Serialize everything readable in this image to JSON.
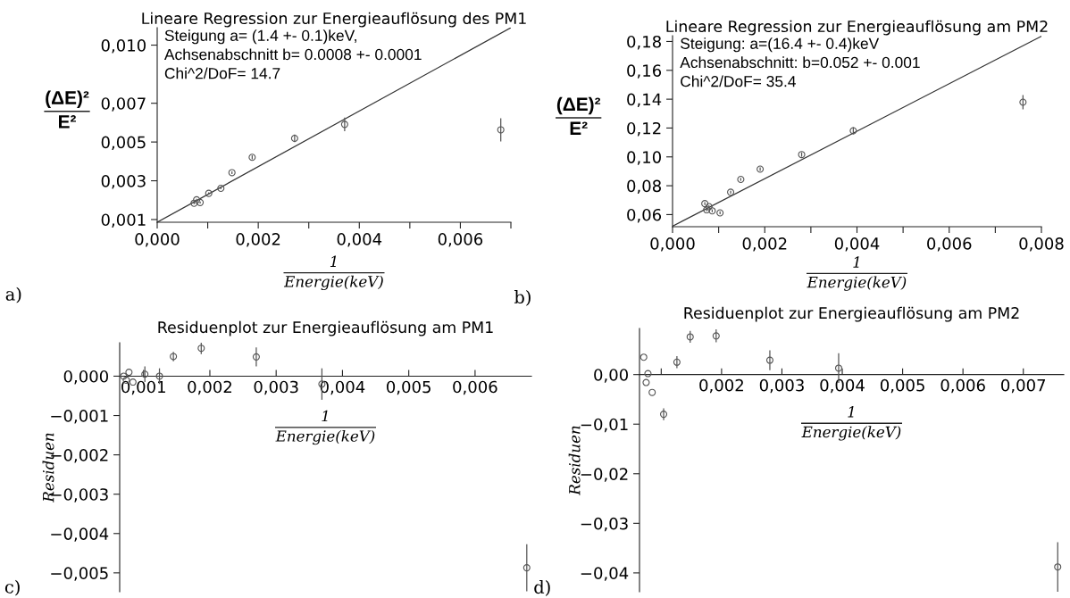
{
  "chart_data": [
    {
      "type": "scatter",
      "title": "Lineare Regression zur Energieauflösung des PM1",
      "xlabel": "1\nEnergie(keV)",
      "ylabel": "(ΔE)²\nE²",
      "xlim": [
        0,
        0.007
      ],
      "ylim": [
        0.00086,
        0.0109
      ],
      "xticks": [
        {
          "value": 0,
          "label": "0,000"
        },
        {
          "value": 0.001,
          "label": null
        },
        {
          "value": 0.002,
          "label": "0,002"
        },
        {
          "value": 0.003,
          "label": null
        },
        {
          "value": 0.004,
          "label": "0,004"
        },
        {
          "value": 0.005,
          "label": null
        },
        {
          "value": 0.006,
          "label": "0,006"
        },
        {
          "value": 0.007,
          "label": null
        }
      ],
      "yticks": [
        {
          "value": 0.001,
          "label": "0,001"
        },
        {
          "value": 0.003,
          "label": "0,003"
        },
        {
          "value": 0.005,
          "label": "0,005"
        },
        {
          "value": 0.007,
          "label": "0,007"
        },
        {
          "value": 0.01,
          "label": "0,010"
        }
      ],
      "grid": false,
      "marker": "circle",
      "series": [
        {
          "color": "#555555",
          "x": [
            0.00073,
            0.00078,
            0.00085,
            0.00102,
            0.00126,
            0.00148,
            0.00188,
            0.00272,
            0.00371,
            0.0068
          ],
          "values": [
            0.00184,
            0.00202,
            0.00188,
            0.00235,
            0.00261,
            0.00342,
            0.00421,
            0.00519,
            0.00591,
            0.00563
          ],
          "errors": [
            5e-05,
            5e-05,
            5e-05,
            5e-05,
            5e-05,
            7e-05,
            0.0001,
            0.0002,
            0.00035,
            0.0006
          ]
        },
        {
          "type": "line",
          "marker": "none",
          "color": "#333333",
          "x": [
            0,
            0.007
          ],
          "values": [
            0.00086,
            0.0109
          ]
        }
      ],
      "annotations": [
        "a)",
        "Steigung a= (1.4 +- 0.1)keV,\nAchsenabschnitt b= 0.0008 +- 0.0001\nChi^2/DoF= 14.7"
      ]
    },
    {
      "type": "scatter",
      "title": "Lineare Regression zur Energieauflösung am PM2",
      "xlabel": "1\nEnergie(keV)",
      "ylabel": "(ΔE)²\nE²",
      "xlim": [
        0,
        0.008
      ],
      "ylim": [
        0.0516,
        0.184
      ],
      "xticks": [
        {
          "value": 0,
          "label": "0,000"
        },
        {
          "value": 0.001,
          "label": null
        },
        {
          "value": 0.002,
          "label": "0,002"
        },
        {
          "value": 0.003,
          "label": null
        },
        {
          "value": 0.004,
          "label": "0,004"
        },
        {
          "value": 0.005,
          "label": null
        },
        {
          "value": 0.006,
          "label": "0,006"
        },
        {
          "value": 0.007,
          "label": null
        },
        {
          "value": 0.008,
          "label": "0,008"
        }
      ],
      "yticks": [
        {
          "value": 0.06,
          "label": "0,06"
        },
        {
          "value": 0.08,
          "label": "0,08"
        },
        {
          "value": 0.1,
          "label": "0,10"
        },
        {
          "value": 0.12,
          "label": "0,12"
        },
        {
          "value": 0.14,
          "label": "0,14"
        },
        {
          "value": 0.16,
          "label": "0,16"
        },
        {
          "value": 0.18,
          "label": "0,18"
        }
      ],
      "grid": false,
      "marker": "circle",
      "series": [
        {
          "color": "#555555",
          "x": [
            0.0007,
            0.00074,
            0.00079,
            0.00086,
            0.00103,
            0.00126,
            0.00148,
            0.0019,
            0.0028,
            0.00392,
            0.0076
          ],
          "values": [
            0.0676,
            0.0633,
            0.0655,
            0.0626,
            0.0612,
            0.0755,
            0.0844,
            0.0915,
            0.1016,
            0.1181,
            0.1379
          ],
          "errors": [
            0.001,
            0.001,
            0.001,
            0.001,
            0.001,
            0.001,
            0.001,
            0.0012,
            0.0015,
            0.0025,
            0.005
          ]
        },
        {
          "type": "line",
          "marker": "none",
          "color": "#333333",
          "x": [
            0,
            0.008
          ],
          "values": [
            0.052,
            0.1836
          ]
        }
      ],
      "annotations": [
        "b)",
        "Steigung: a=(16.4 +- 0.4)keV\nAchsenabschnitt: b=0.052 +- 0.001\nChi^2/DoF= 35.4"
      ]
    },
    {
      "type": "scatter",
      "title": "Residuenplot zur Energieauflösung am PM1",
      "xlabel": "1\nEnergie(keV)",
      "ylabel": "Residuen",
      "xlim": [
        0.00064,
        0.00685
      ],
      "ylim": [
        -0.00548,
        0.00085
      ],
      "xticks": [
        {
          "value": 0.001,
          "label": "0,001"
        },
        {
          "value": 0.002,
          "label": "0,002"
        },
        {
          "value": 0.003,
          "label": "0,003"
        },
        {
          "value": 0.004,
          "label": "0,004"
        },
        {
          "value": 0.005,
          "label": "0,005"
        },
        {
          "value": 0.006,
          "label": "0,006"
        }
      ],
      "yticks": [
        {
          "value": 0,
          "label": "0,000"
        },
        {
          "value": -0.001,
          "label": "−0,001"
        },
        {
          "value": -0.002,
          "label": "−0,002"
        },
        {
          "value": -0.003,
          "label": "−0,003"
        },
        {
          "value": -0.004,
          "label": "−0,004"
        },
        {
          "value": -0.005,
          "label": "−0,005"
        }
      ],
      "grid": false,
      "marker": "circle",
      "series": [
        {
          "color": "#555555",
          "x": [
            0.0007,
            0.00074,
            0.00078,
            0.00084,
            0.00102,
            0.00124,
            0.00145,
            0.00187,
            0.0027,
            0.00369,
            0.00678
          ],
          "values": [
            0,
            -0.0001,
            0.0001,
            -0.00015,
            5e-05,
            0,
            0.0005,
            0.00071,
            0.00049,
            -0.0002,
            -0.00487
          ],
          "errors": [
            null,
            null,
            null,
            null,
            0.0002,
            0.0002,
            0.00012,
            0.00015,
            0.00024,
            0.0004,
            0.0006
          ]
        }
      ],
      "annotations": [
        "c)"
      ]
    },
    {
      "type": "scatter",
      "title": "Residuenplot zur Energieauflösung am PM2",
      "xlabel": "1\nEnergie(keV)",
      "ylabel": "Residuen",
      "xlim": [
        0.00064,
        0.00767
      ],
      "ylim": [
        -0.0438,
        0.0093
      ],
      "xticks": [
        {
          "value": 0.001,
          "label": null
        },
        {
          "value": 0.002,
          "label": "0,002"
        },
        {
          "value": 0.003,
          "label": "0,003"
        },
        {
          "value": 0.004,
          "label": "0,004"
        },
        {
          "value": 0.005,
          "label": "0,005"
        },
        {
          "value": 0.006,
          "label": "0,006"
        },
        {
          "value": 0.007,
          "label": "0,007"
        }
      ],
      "yticks": [
        {
          "value": 0,
          "label": "0,00"
        },
        {
          "value": -0.01,
          "label": "−0,01"
        },
        {
          "value": -0.02,
          "label": "−0,02"
        },
        {
          "value": -0.03,
          "label": "−0,03"
        },
        {
          "value": -0.04,
          "label": "−0,04"
        }
      ],
      "grid": false,
      "marker": "circle",
      "series": [
        {
          "color": "#555555",
          "x": [
            0.00071,
            0.00075,
            0.00078,
            0.00085,
            0.00104,
            0.00126,
            0.00148,
            0.00191,
            0.0028,
            0.00394,
            0.00757
          ],
          "values": [
            0.0035,
            -0.0016,
            0.0002,
            -0.0036,
            -0.008,
            0.0025,
            0.0076,
            0.0078,
            0.0029,
            0.0013,
            -0.0388
          ],
          "errors": [
            null,
            null,
            null,
            null,
            0.0012,
            0.0012,
            0.0012,
            0.0013,
            0.002,
            0.003,
            0.005
          ]
        }
      ],
      "annotations": [
        "d)"
      ]
    }
  ]
}
